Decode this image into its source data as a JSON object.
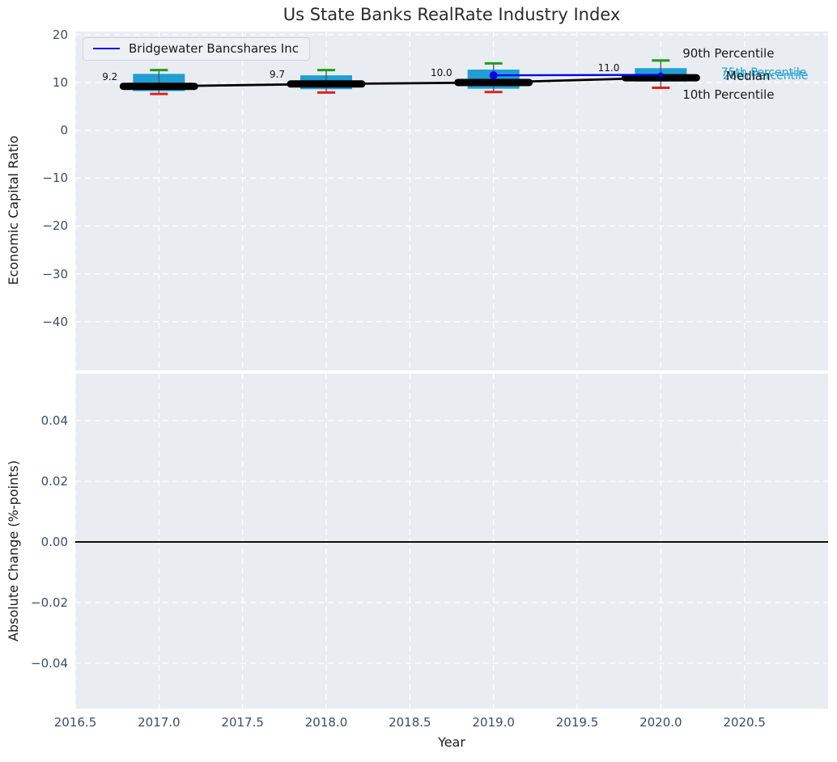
{
  "title": "Us State Banks RealRate Industry Index",
  "legend": {
    "label": "Bridgewater Bancshares Inc"
  },
  "colors": {
    "axes_bg": "#e9edf1",
    "grid": "#ffffff",
    "box_fill": "#1f9fd4",
    "whisker": "#4a545e",
    "cap_top": "#1d9c1d",
    "cap_bottom": "#e02020",
    "median_line": "#000000",
    "company_line": "#0000ee",
    "tick_text": "#3e4d63",
    "cyan_text": "#1f9fd4"
  },
  "chart_data": [
    {
      "type": "box",
      "title": "Us State Banks RealRate Industry Index",
      "ylabel": "Economic Capital Ratio",
      "xlim": [
        2016.5,
        2021.0
      ],
      "ylim": [
        -50.2,
        20.65
      ],
      "ytick_values": [
        20,
        10,
        0,
        -10,
        -20,
        -30,
        -40
      ],
      "yticks": [
        "20",
        "10",
        "0",
        "−10",
        "−20",
        "−30",
        "−40"
      ],
      "xtick_values": [
        2016.5,
        2017.0,
        2017.5,
        2018.0,
        2018.5,
        2019.0,
        2019.5,
        2020.0,
        2020.5
      ],
      "years": [
        2017,
        2018,
        2019,
        2020
      ],
      "median": [
        9.2,
        9.7,
        10.0,
        11.0
      ],
      "p25": [
        8.2,
        8.6,
        8.7,
        10.2
      ],
      "p75": [
        11.8,
        11.5,
        12.7,
        13.0
      ],
      "p10": [
        7.6,
        7.9,
        8.0,
        8.9
      ],
      "p90": [
        12.6,
        12.6,
        14.0,
        14.6
      ],
      "median_labels": [
        "9.2",
        "9.7",
        "10.0",
        "11.0"
      ],
      "series": [
        {
          "name": "Bridgewater Bancshares Inc",
          "x": [
            2019,
            2020
          ],
          "y": [
            11.5,
            11.6
          ]
        }
      ],
      "annotations": [
        {
          "text": "90th Percentile",
          "x": 2020.13,
          "y": 16.1,
          "color": "#1a1a1a",
          "size": 15
        },
        {
          "text": "75th Percentile",
          "x": 2020.36,
          "y": 12.1,
          "color": "#1f9fd4",
          "size": 14
        },
        {
          "text": "25th Percentile",
          "x": 2020.37,
          "y": 11.4,
          "color": "#1f9fd4",
          "size": 14
        },
        {
          "text": "Median",
          "x": 2020.39,
          "y": 11.3,
          "color": "#1a1a1a",
          "size": 15
        },
        {
          "text": "10th Percentile",
          "x": 2020.13,
          "y": 7.4,
          "color": "#1a1a1a",
          "size": 15
        }
      ],
      "legend_position": "upper left"
    },
    {
      "type": "line",
      "ylabel": "Absolute Change (%-points)",
      "xlabel": "Year",
      "xlim": [
        2016.5,
        2021.0
      ],
      "ylim": [
        -0.055,
        0.0555
      ],
      "ytick_values": [
        0.04,
        0.02,
        0,
        -0.02,
        -0.04
      ],
      "yticks": [
        "0.04",
        "0.02",
        "0.00",
        "−0.02",
        "−0.04"
      ],
      "xtick_values": [
        2016.5,
        2017.0,
        2017.5,
        2018.0,
        2018.5,
        2019.0,
        2019.5,
        2020.0,
        2020.5
      ],
      "xticks": [
        "2016.5",
        "2017.0",
        "2017.5",
        "2018.0",
        "2018.5",
        "2019.0",
        "2019.5",
        "2020.0",
        "2020.5"
      ],
      "zero_line": 0
    }
  ]
}
